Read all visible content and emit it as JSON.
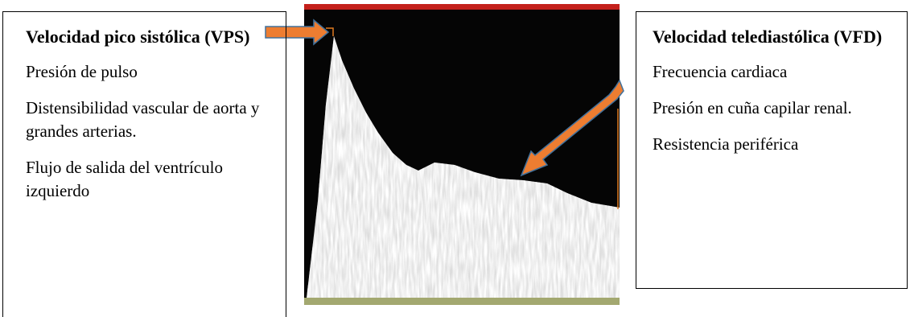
{
  "left_box": {
    "title": "Velocidad pico sistólica (VPS)",
    "items": [
      "Presión de pulso",
      "Distensibilidad vascular de aorta y grandes arterias.",
      "Flujo de salida del ventrículo izquierdo"
    ]
  },
  "right_box": {
    "title": "Velocidad telediastólica (VFD)",
    "items": [
      "Frecuencia cardiaca",
      "Presión en cuña capilar renal.",
      "Resistencia periférica"
    ]
  }
}
